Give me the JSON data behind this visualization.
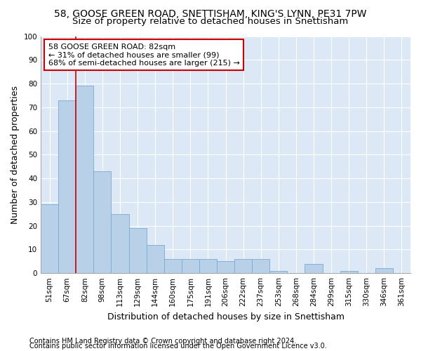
{
  "title1": "58, GOOSE GREEN ROAD, SNETTISHAM, KING'S LYNN, PE31 7PW",
  "title2": "Size of property relative to detached houses in Snettisham",
  "xlabel": "Distribution of detached houses by size in Snettisham",
  "ylabel": "Number of detached properties",
  "categories": [
    "51sqm",
    "67sqm",
    "82sqm",
    "98sqm",
    "113sqm",
    "129sqm",
    "144sqm",
    "160sqm",
    "175sqm",
    "191sqm",
    "206sqm",
    "222sqm",
    "237sqm",
    "253sqm",
    "268sqm",
    "284sqm",
    "299sqm",
    "315sqm",
    "330sqm",
    "346sqm",
    "361sqm"
  ],
  "values": [
    29,
    73,
    79,
    43,
    25,
    19,
    12,
    6,
    6,
    6,
    5,
    6,
    6,
    1,
    0,
    4,
    0,
    1,
    0,
    2,
    0
  ],
  "bar_color": "#b8d0e8",
  "bar_edge_color": "#7aaad0",
  "vline_x": 2,
  "vline_color": "#cc0000",
  "annotation_text": "58 GOOSE GREEN ROAD: 82sqm\n← 31% of detached houses are smaller (99)\n68% of semi-detached houses are larger (215) →",
  "annotation_box_color": "#ffffff",
  "annotation_box_edge": "#cc0000",
  "ylim": [
    0,
    100
  ],
  "yticks": [
    0,
    10,
    20,
    30,
    40,
    50,
    60,
    70,
    80,
    90,
    100
  ],
  "footer1": "Contains HM Land Registry data © Crown copyright and database right 2024.",
  "footer2": "Contains public sector information licensed under the Open Government Licence v3.0.",
  "bg_color": "#dce8f5",
  "title1_fontsize": 10,
  "title2_fontsize": 9.5,
  "annotation_fontsize": 8,
  "tick_fontsize": 7.5,
  "label_fontsize": 9,
  "footer_fontsize": 7
}
